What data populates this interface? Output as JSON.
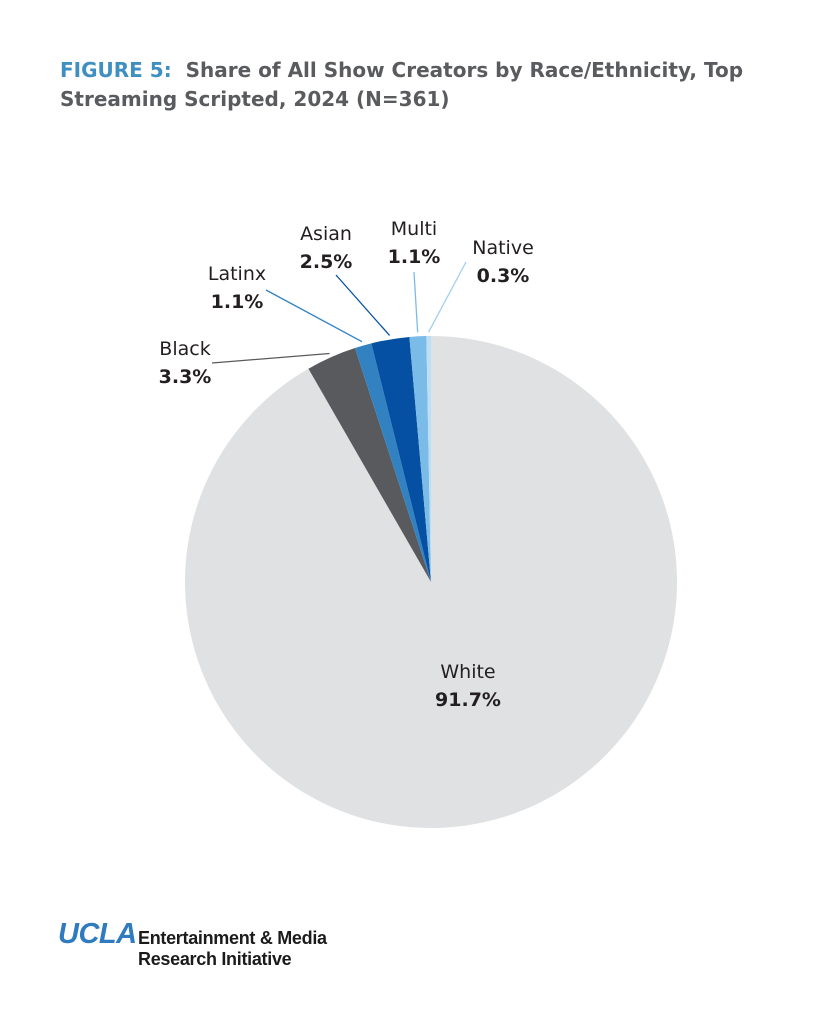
{
  "title": {
    "label": "FIGURE 5:",
    "text": "Share of All Show Creators by Race/Ethnicity, Top Streaming Scripted, 2024 (N=361)"
  },
  "chart_data": {
    "type": "pie",
    "title": "FIGURE 5: Share of All Show Creators by Race/Ethnicity, Top Streaming Scripted, 2024 (N=361)",
    "slices": [
      {
        "label": "White",
        "value": 91.7,
        "value_label": "91.7%",
        "color": "#e0e1e2"
      },
      {
        "label": "Black",
        "value": 3.3,
        "value_label": "3.3%",
        "color": "#595a5d"
      },
      {
        "label": "Latinx",
        "value": 1.1,
        "value_label": "1.1%",
        "color": "#3282c2"
      },
      {
        "label": "Asian",
        "value": 2.5,
        "value_label": "2.5%",
        "color": "#0650a3"
      },
      {
        "label": "Multi",
        "value": 1.1,
        "value_label": "1.1%",
        "color": "#7bbbe8"
      },
      {
        "label": "Native",
        "value": 0.3,
        "value_label": "0.3%",
        "color": "#bcdff5"
      }
    ],
    "legend": "none (direct labels with leader lines)"
  },
  "footer": {
    "logo_text": "UCLA",
    "org_line1": "Entertainment & Media",
    "org_line2": "Research Initiative"
  }
}
